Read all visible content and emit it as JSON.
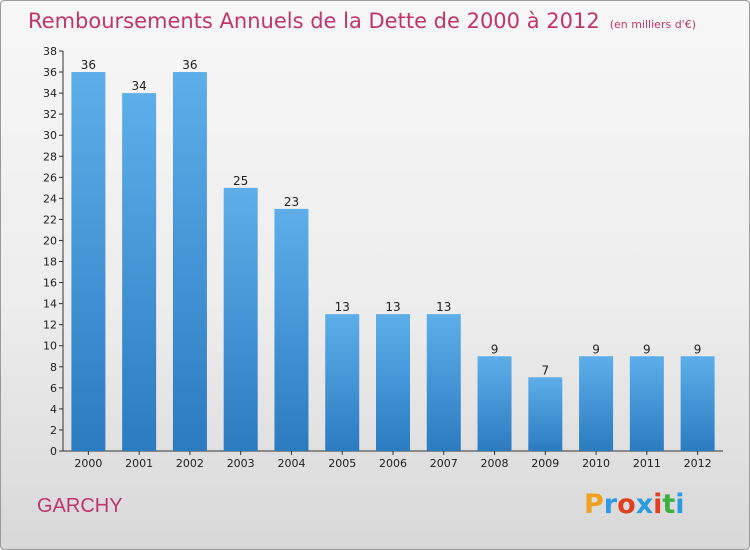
{
  "header": {
    "title": "Remboursements Annuels de la Dette de 2000 à 2012",
    "unit": "(en milliers d'€)"
  },
  "footer": {
    "commune": "GARCHY",
    "logo_text": "Proxiti"
  },
  "colors": {
    "title": "#c0356a",
    "bar_light": "#5eaeea",
    "bar_dark": "#2c7bc0",
    "logo": [
      "#f0a020",
      "#2e9be0",
      "#e04020",
      "#2e9be0",
      "#e04020",
      "#3cb040",
      "#2e9be0"
    ]
  },
  "chart_data": {
    "type": "bar",
    "title": "Remboursements Annuels de la Dette de 2000 à 2012",
    "xlabel": "",
    "ylabel": "",
    "categories": [
      "2000",
      "2001",
      "2002",
      "2003",
      "2004",
      "2005",
      "2006",
      "2007",
      "2008",
      "2009",
      "2010",
      "2011",
      "2012"
    ],
    "values": [
      36,
      34,
      36,
      25,
      23,
      13,
      13,
      13,
      9,
      7,
      9,
      9,
      9
    ],
    "ylim": [
      0,
      38
    ],
    "yticks": [
      0,
      2,
      4,
      6,
      8,
      10,
      12,
      14,
      16,
      18,
      20,
      22,
      24,
      26,
      28,
      30,
      32,
      34,
      36,
      38
    ],
    "grid": false,
    "data_labels": true
  }
}
